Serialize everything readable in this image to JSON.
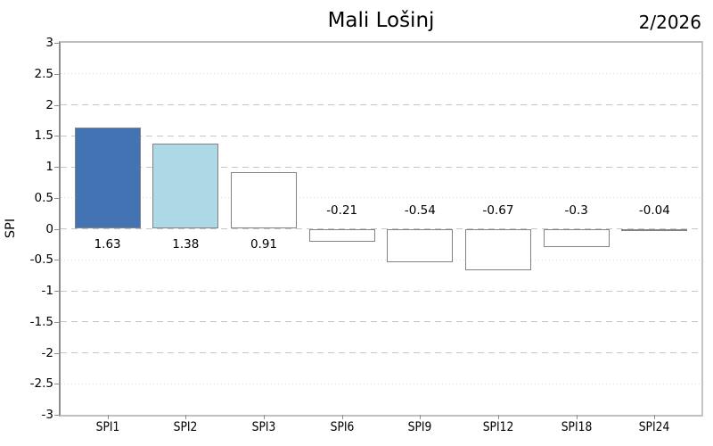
{
  "chart_data": {
    "type": "bar",
    "title": "Mali Lošinj",
    "period_annotation": "2/2026",
    "ylabel": "SPI",
    "xlabel": "",
    "categories": [
      "SPI1",
      "SPI2",
      "SPI3",
      "SPI6",
      "SPI9",
      "SPI12",
      "SPI18",
      "SPI24"
    ],
    "values": [
      1.63,
      1.38,
      0.91,
      -0.21,
      -0.54,
      -0.67,
      -0.3,
      -0.04
    ],
    "value_labels": [
      "1.63",
      "1.38",
      "0.91",
      "-0.21",
      "-0.54",
      "-0.67",
      "-0.3",
      "-0.04"
    ],
    "bar_colors": [
      "#4473b3",
      "#add8e6",
      "#ffffff",
      "#ffffff",
      "#ffffff",
      "#ffffff",
      "#ffffff",
      "#ffffff"
    ],
    "bar_edge_color": "#828282",
    "ylim": [
      -3,
      3
    ],
    "yticks": [
      3,
      2.5,
      2,
      1.5,
      1,
      0.5,
      0,
      -0.5,
      -1,
      -1.5,
      -2,
      -2.5,
      -3
    ],
    "dotted_gridlines": [
      2.5,
      0.5,
      -0.5,
      -2.5
    ],
    "grid": "horizontal",
    "legend": "none"
  }
}
